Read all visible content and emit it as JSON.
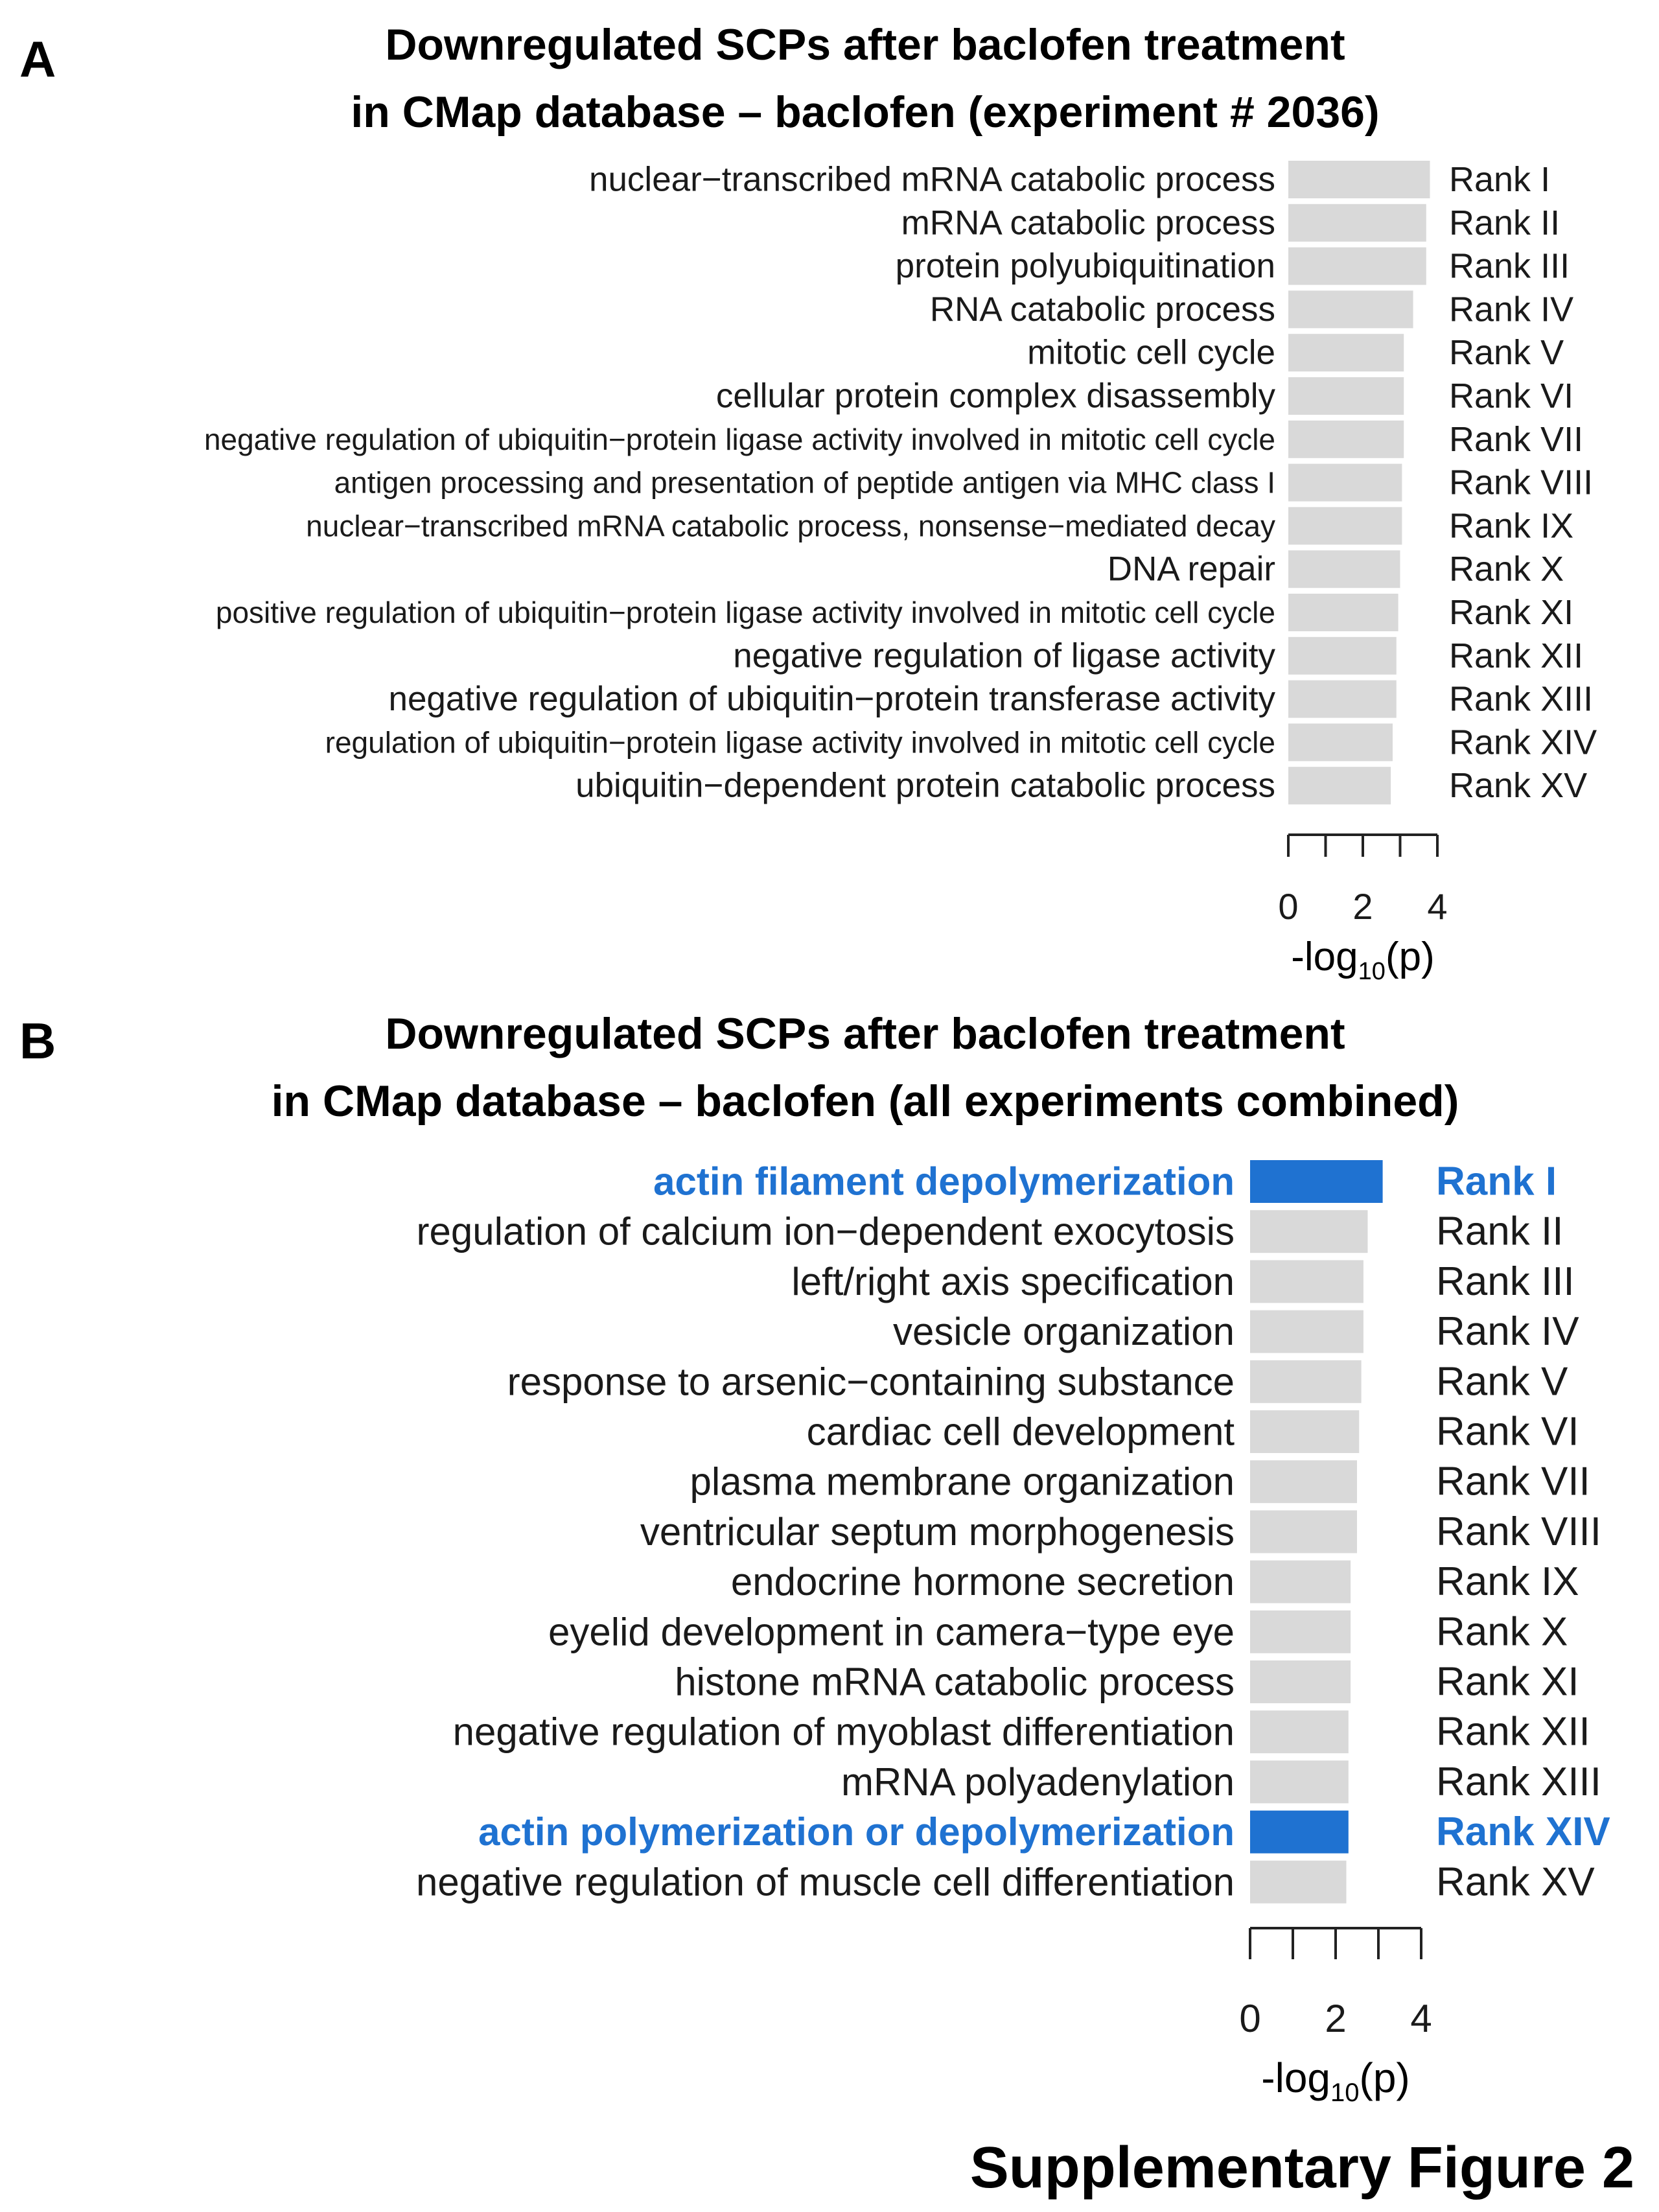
{
  "figure_caption": "Supplementary Figure 2",
  "colors": {
    "bar_default": "#d9d9d9",
    "bar_highlight": "#1f72d1",
    "text_default": "#1a1a1a",
    "text_highlight": "#1f72d1",
    "axis": "#222222"
  },
  "chart_data": [
    {
      "panel_label": "A",
      "type": "bar",
      "orientation": "horizontal",
      "title_line1": "Downregulated SCPs after baclofen treatment",
      "title_line2": "in CMap database – baclofen (experiment # 2036)",
      "xlabel": "-log10(p)",
      "xlabel_base": "-log",
      "xlabel_sub": "10",
      "xlabel_tail": "(p)",
      "xlim": [
        0,
        4
      ],
      "xticks": [
        0,
        2,
        4
      ],
      "minor_ticks": [
        0,
        1,
        2,
        3,
        4
      ],
      "categories": [
        "nuclear−transcribed mRNA catabolic process",
        "mRNA catabolic process",
        "protein polyubiquitination",
        "RNA catabolic process",
        "mitotic cell cycle",
        "cellular protein complex disassembly",
        "negative regulation of ubiquitin−protein ligase activity involved in mitotic cell cycle",
        "antigen processing and presentation of peptide antigen via MHC class I",
        "nuclear−transcribed mRNA catabolic process, nonsense−mediated decay",
        "DNA repair",
        "positive regulation of ubiquitin−protein ligase activity involved in mitotic cell cycle",
        "negative regulation of ligase activity",
        "negative regulation of ubiquitin−protein transferase activity",
        "regulation of ubiquitin−protein ligase activity involved in mitotic cell cycle",
        "ubiquitin−dependent protein catabolic process"
      ],
      "ranks": [
        "Rank I",
        "Rank II",
        "Rank III",
        "Rank IV",
        "Rank V",
        "Rank VI",
        "Rank VII",
        "Rank VIII",
        "Rank IX",
        "Rank X",
        "Rank XI",
        "Rank XII",
        "Rank XIII",
        "Rank XIV",
        "Rank XV"
      ],
      "values": [
        3.8,
        3.7,
        3.7,
        3.35,
        3.1,
        3.1,
        3.1,
        3.05,
        3.05,
        3.0,
        2.95,
        2.9,
        2.9,
        2.8,
        2.75
      ],
      "highlight": [
        false,
        false,
        false,
        false,
        false,
        false,
        false,
        false,
        false,
        false,
        false,
        false,
        false,
        false,
        false
      ],
      "label_small": [
        false,
        false,
        false,
        false,
        false,
        false,
        true,
        true,
        true,
        false,
        true,
        false,
        false,
        true,
        false
      ]
    },
    {
      "panel_label": "B",
      "type": "bar",
      "orientation": "horizontal",
      "title_line1": "Downregulated SCPs after baclofen treatment",
      "title_line2": "in CMap database – baclofen (all experiments combined)",
      "xlabel": "-log10(p)",
      "xlabel_base": "-log",
      "xlabel_sub": "10",
      "xlabel_tail": "(p)",
      "xlim": [
        0,
        4
      ],
      "xticks": [
        0,
        2,
        4
      ],
      "minor_ticks": [
        0,
        1,
        2,
        3,
        4
      ],
      "categories": [
        "actin filament depolymerization",
        "regulation of calcium ion−dependent exocytosis",
        "left/right axis specification",
        "vesicle organization",
        "response to arsenic−containing substance",
        "cardiac cell development",
        "plasma membrane organization",
        "ventricular septum morphogenesis",
        "endocrine hormone secretion",
        "eyelid development in camera−type eye",
        "histone mRNA catabolic process",
        "negative regulation of myoblast differentiation",
        "mRNA polyadenylation",
        "actin polymerization or depolymerization",
        "negative regulation of muscle cell differentiation"
      ],
      "ranks": [
        "Rank I",
        "Rank II",
        "Rank III",
        "Rank IV",
        "Rank V",
        "Rank VI",
        "Rank VII",
        "Rank VIII",
        "Rank IX",
        "Rank X",
        "Rank XI",
        "Rank XII",
        "Rank XIII",
        "Rank XIV",
        "Rank XV"
      ],
      "values": [
        3.1,
        2.75,
        2.65,
        2.65,
        2.6,
        2.55,
        2.5,
        2.5,
        2.35,
        2.35,
        2.35,
        2.3,
        2.3,
        2.3,
        2.25
      ],
      "highlight": [
        true,
        false,
        false,
        false,
        false,
        false,
        false,
        false,
        false,
        false,
        false,
        false,
        false,
        true,
        false
      ],
      "label_small": [
        false,
        false,
        false,
        false,
        false,
        false,
        false,
        false,
        false,
        false,
        false,
        false,
        false,
        false,
        false
      ]
    }
  ]
}
